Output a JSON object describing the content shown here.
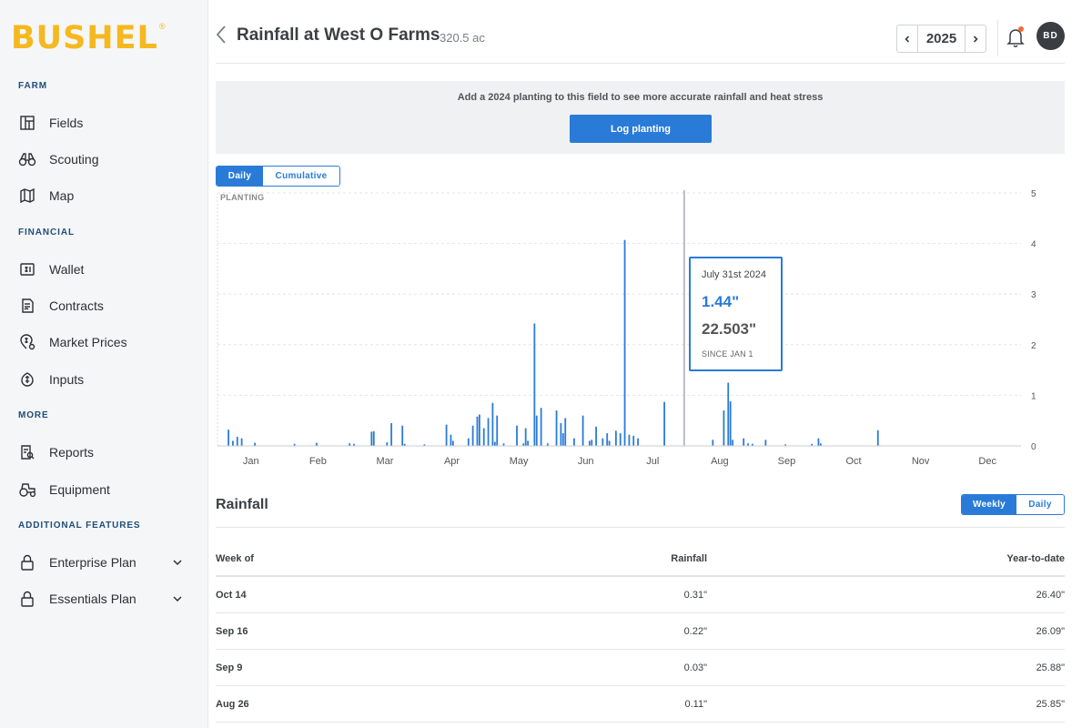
{
  "brand": {
    "name": "BUSHEL",
    "reg": "®",
    "color": "#f5b81e"
  },
  "sidebar": {
    "sections": [
      {
        "label": "FARM",
        "items": [
          {
            "label": "Fields",
            "icon": "fields-icon"
          },
          {
            "label": "Scouting",
            "icon": "binoculars-icon"
          },
          {
            "label": "Map",
            "icon": "map-icon"
          }
        ]
      },
      {
        "label": "FINANCIAL",
        "items": [
          {
            "label": "Wallet",
            "icon": "wallet-icon"
          },
          {
            "label": "Contracts",
            "icon": "contract-icon"
          },
          {
            "label": "Market Prices",
            "icon": "market-price-icon"
          },
          {
            "label": "Inputs",
            "icon": "seed-icon"
          }
        ]
      },
      {
        "label": "MORE",
        "items": [
          {
            "label": "Reports",
            "icon": "report-icon"
          },
          {
            "label": "Equipment",
            "icon": "tractor-icon"
          }
        ]
      },
      {
        "label": "ADDITIONAL FEATURES",
        "items": [
          {
            "label": "Enterprise Plan",
            "icon": "lock-icon"
          },
          {
            "label": "Essentials Plan",
            "icon": "lock-icon"
          }
        ]
      }
    ]
  },
  "header": {
    "title": "Rainfall at West O Farms",
    "acres": "320.5 ac",
    "year": "2025",
    "avatar_initials": "BD"
  },
  "banner": {
    "text": "Add a 2024 planting to this field to see more accurate rainfall and heat stress",
    "button": "Log planting"
  },
  "chart_toggle": {
    "options": [
      "Daily",
      "Cumulative"
    ],
    "active": "Daily"
  },
  "chart_data": {
    "type": "bar",
    "annotation": "PLANTING",
    "xlabel": "",
    "ylabel": "",
    "x_ticks": [
      "Jan",
      "Feb",
      "Mar",
      "Apr",
      "May",
      "Jun",
      "Jul",
      "Aug",
      "Sep",
      "Oct",
      "Nov",
      "Dec"
    ],
    "y_ticks": [
      "0",
      "1",
      "2",
      "3",
      "4",
      "5"
    ],
    "ylim": [
      0,
      5
    ],
    "x_unit": "day of year",
    "grid": true,
    "color": "#2a7bd8",
    "cursor_day": 212,
    "x": [
      5,
      7,
      9,
      11,
      17,
      35,
      45,
      60,
      62,
      70,
      71,
      77,
      79,
      84,
      85,
      94,
      104,
      106,
      107,
      114,
      116,
      118,
      119,
      121,
      123,
      125,
      126,
      127,
      130,
      136,
      139,
      140,
      141,
      144,
      145,
      147,
      150,
      154,
      156,
      157,
      158,
      162,
      166,
      169,
      170,
      172,
      175,
      177,
      178,
      181,
      183,
      185,
      187,
      189,
      191,
      203,
      225,
      230,
      232,
      233,
      234,
      239,
      241,
      243,
      249,
      258,
      270,
      273,
      274,
      300
    ],
    "values": [
      0.32,
      0.1,
      0.18,
      0.15,
      0.06,
      0.04,
      0.06,
      0.05,
      0.04,
      0.28,
      0.29,
      0.07,
      0.45,
      0.4,
      0.04,
      0.03,
      0.42,
      0.22,
      0.1,
      0.15,
      0.4,
      0.58,
      0.62,
      0.35,
      0.55,
      0.85,
      0.08,
      0.6,
      0.05,
      0.4,
      0.05,
      0.35,
      0.1,
      2.42,
      0.6,
      0.75,
      0.05,
      0.7,
      0.45,
      0.25,
      0.55,
      0.15,
      0.6,
      0.1,
      0.12,
      0.38,
      0.15,
      0.25,
      0.1,
      0.3,
      0.25,
      4.07,
      0.22,
      0.2,
      0.15,
      0.87,
      0.12,
      0.7,
      1.25,
      0.88,
      0.12,
      0.15,
      0.05,
      0.04,
      0.12,
      0.03,
      0.04,
      0.15,
      0.05,
      0.31
    ]
  },
  "tooltip": {
    "date": "July 31st 2024",
    "daily": "1.44\"",
    "total": "22.503\"",
    "since": "SINCE JAN 1"
  },
  "rainfall_section": {
    "title": "Rainfall",
    "toggle": {
      "options": [
        "Weekly",
        "Daily"
      ],
      "active": "Weekly"
    },
    "columns": [
      "Week of",
      "Rainfall",
      "Year-to-date"
    ],
    "rows": [
      {
        "week": "Oct 14",
        "rainfall": "0.31\"",
        "ytd": "26.40\""
      },
      {
        "week": "Sep 16",
        "rainfall": "0.22\"",
        "ytd": "26.09\""
      },
      {
        "week": "Sep 9",
        "rainfall": "0.03\"",
        "ytd": "25.88\""
      },
      {
        "week": "Aug 26",
        "rainfall": "0.11\"",
        "ytd": "25.85\""
      }
    ]
  }
}
